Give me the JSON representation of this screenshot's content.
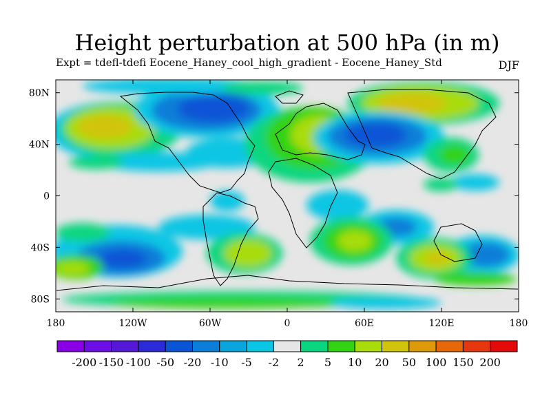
{
  "title": "Height perturbation at 500 hPa (in m)",
  "subtitle": "Expt = tdefl-tdefi  Eocene_Haney_cool_high_gradient - Eocene_Haney_Std",
  "season": "DJF",
  "chart_data": {
    "type": "heatmap",
    "projection": "cylindrical equidistant",
    "lon_range": [
      -180,
      180
    ],
    "lat_range": [
      -90,
      90
    ],
    "x_ticks": [
      "180",
      "120W",
      "60W",
      "0",
      "60E",
      "120E",
      "180"
    ],
    "y_ticks": [
      "80N",
      "40N",
      "0",
      "40S",
      "80S"
    ],
    "colorbar": {
      "levels": [
        "-200",
        "-150",
        "-100",
        "-50",
        "-20",
        "-10",
        "-5",
        "-2",
        "2",
        "5",
        "10",
        "20",
        "50",
        "100",
        "150",
        "200"
      ],
      "colors": [
        "#8a00e6",
        "#6e0ee6",
        "#5418d6",
        "#2d2ad8",
        "#0a55d6",
        "#0a7ed8",
        "#08a6dc",
        "#08c6e4",
        "#e6e6e6",
        "#0ad680",
        "#32d314",
        "#a8dc0a",
        "#d2c40a",
        "#df9a0a",
        "#e7680a",
        "#e6370e",
        "#e40a0a"
      ]
    },
    "anomaly_centers": [
      {
        "lon": -150,
        "lat": 50,
        "level": "20"
      },
      {
        "lon": -95,
        "lat": 62,
        "level": "-20"
      },
      {
        "lon": 115,
        "lat": 76,
        "level": "20"
      },
      {
        "lon": 85,
        "lat": 50,
        "level": "-20"
      },
      {
        "lon": 45,
        "lat": 62,
        "level": "10"
      },
      {
        "lon": -130,
        "lat": -47,
        "level": "-20"
      },
      {
        "lon": -30,
        "lat": -42,
        "level": "10"
      },
      {
        "lon": 50,
        "lat": -35,
        "level": "20"
      },
      {
        "lon": 118,
        "lat": -42,
        "level": "20"
      },
      {
        "lon": 160,
        "lat": -45,
        "level": "-10"
      },
      {
        "lon": -170,
        "lat": -56,
        "level": "20"
      }
    ]
  }
}
